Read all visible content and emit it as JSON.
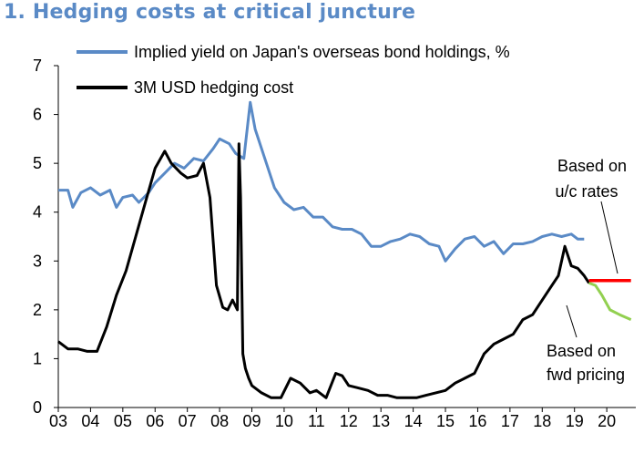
{
  "chart_data": {
    "type": "line",
    "title": "1. Hedging costs at critical juncture",
    "xlabel": "",
    "ylabel": "",
    "xlim": [
      2003,
      2020.9
    ],
    "ylim": [
      0,
      7
    ],
    "x_ticks": [
      2003,
      2004,
      2005,
      2006,
      2007,
      2008,
      2009,
      2010,
      2011,
      2012,
      2013,
      2014,
      2015,
      2016,
      2017,
      2018,
      2019,
      2020
    ],
    "x_tick_labels": [
      "03",
      "04",
      "05",
      "06",
      "07",
      "08",
      "09",
      "10",
      "11",
      "12",
      "13",
      "14",
      "15",
      "16",
      "17",
      "18",
      "19",
      "20"
    ],
    "y_ticks": [
      0,
      1,
      2,
      3,
      4,
      5,
      6,
      7
    ],
    "y_tick_labels": [
      "0",
      "1",
      "2",
      "3",
      "4",
      "5",
      "6",
      "7"
    ],
    "grid": false,
    "legend_position": "top-left",
    "series": [
      {
        "name": "Implied yield on Japan's overseas bond holdings, %",
        "color": "#5a8ac6",
        "x": [
          2003.0,
          2003.3,
          2003.45,
          2003.7,
          2004.0,
          2004.3,
          2004.6,
          2004.8,
          2005.0,
          2005.3,
          2005.5,
          2005.8,
          2006.0,
          2006.3,
          2006.6,
          2006.9,
          2007.2,
          2007.5,
          2007.8,
          2008.0,
          2008.3,
          2008.5,
          2008.75,
          2008.95,
          2009.1,
          2009.4,
          2009.7,
          2010.0,
          2010.3,
          2010.6,
          2010.9,
          2011.2,
          2011.5,
          2011.8,
          2012.1,
          2012.4,
          2012.7,
          2013.0,
          2013.3,
          2013.6,
          2013.9,
          2014.2,
          2014.5,
          2014.8,
          2015.0,
          2015.3,
          2015.6,
          2015.9,
          2016.2,
          2016.5,
          2016.8,
          2017.1,
          2017.4,
          2017.7,
          2018.0,
          2018.3,
          2018.6,
          2018.9,
          2019.1,
          2019.3
        ],
        "values": [
          4.45,
          4.45,
          4.1,
          4.4,
          4.5,
          4.35,
          4.45,
          4.1,
          4.3,
          4.35,
          4.2,
          4.4,
          4.6,
          4.8,
          5.0,
          4.9,
          5.1,
          5.05,
          5.3,
          5.5,
          5.4,
          5.2,
          5.1,
          6.25,
          5.7,
          5.1,
          4.5,
          4.2,
          4.05,
          4.1,
          3.9,
          3.9,
          3.7,
          3.65,
          3.65,
          3.55,
          3.3,
          3.3,
          3.4,
          3.45,
          3.55,
          3.5,
          3.35,
          3.3,
          3.0,
          3.25,
          3.45,
          3.5,
          3.3,
          3.4,
          3.15,
          3.35,
          3.35,
          3.4,
          3.5,
          3.55,
          3.5,
          3.55,
          3.45,
          3.45
        ]
      },
      {
        "name": "3M USD hedging cost",
        "color": "#000000",
        "x": [
          2003.0,
          2003.3,
          2003.6,
          2003.9,
          2004.2,
          2004.5,
          2004.8,
          2005.1,
          2005.4,
          2005.7,
          2006.0,
          2006.3,
          2006.5,
          2006.8,
          2007.0,
          2007.3,
          2007.5,
          2007.7,
          2007.9,
          2008.1,
          2008.25,
          2008.4,
          2008.55,
          2008.6,
          2008.65,
          2008.72,
          2008.8,
          2008.9,
          2009.0,
          2009.3,
          2009.6,
          2009.9,
          2010.2,
          2010.5,
          2010.8,
          2011.0,
          2011.3,
          2011.6,
          2011.8,
          2012.0,
          2012.3,
          2012.6,
          2012.9,
          2013.2,
          2013.5,
          2013.8,
          2014.1,
          2014.4,
          2014.7,
          2015.0,
          2015.3,
          2015.6,
          2015.9,
          2016.2,
          2016.5,
          2016.8,
          2017.1,
          2017.4,
          2017.7,
          2018.0,
          2018.3,
          2018.5,
          2018.7,
          2018.9,
          2019.1,
          2019.3,
          2019.45
        ],
        "values": [
          1.35,
          1.2,
          1.2,
          1.15,
          1.15,
          1.65,
          2.3,
          2.8,
          3.5,
          4.2,
          4.9,
          5.25,
          5.0,
          4.8,
          4.7,
          4.75,
          5.0,
          4.3,
          2.5,
          2.05,
          2.0,
          2.2,
          2.0,
          5.4,
          4.3,
          1.1,
          0.8,
          0.6,
          0.45,
          0.3,
          0.2,
          0.2,
          0.6,
          0.5,
          0.3,
          0.35,
          0.2,
          0.7,
          0.65,
          0.45,
          0.4,
          0.35,
          0.25,
          0.25,
          0.2,
          0.2,
          0.2,
          0.25,
          0.3,
          0.35,
          0.5,
          0.6,
          0.7,
          1.1,
          1.3,
          1.4,
          1.5,
          1.8,
          1.9,
          2.2,
          2.5,
          2.7,
          3.3,
          2.9,
          2.85,
          2.7,
          2.55
        ]
      },
      {
        "name": "Based on u/c rates",
        "color": "#ff0000",
        "x": [
          2019.45,
          2020.75
        ],
        "values": [
          2.6,
          2.6
        ]
      },
      {
        "name": "Based on fwd pricing",
        "color": "#92d050",
        "x": [
          2019.45,
          2019.65,
          2019.85,
          2020.1,
          2020.4,
          2020.75
        ],
        "values": [
          2.55,
          2.5,
          2.3,
          2.0,
          1.9,
          1.8
        ]
      }
    ],
    "annotations": [
      {
        "text_line1": "Based on",
        "text_line2": "u/c rates",
        "target_series": "Based on u/c rates",
        "placement": "upper-right"
      },
      {
        "text_line1": "Based on",
        "text_line2": "fwd pricing",
        "target_series": "Based on fwd pricing",
        "placement": "lower-right"
      }
    ]
  }
}
